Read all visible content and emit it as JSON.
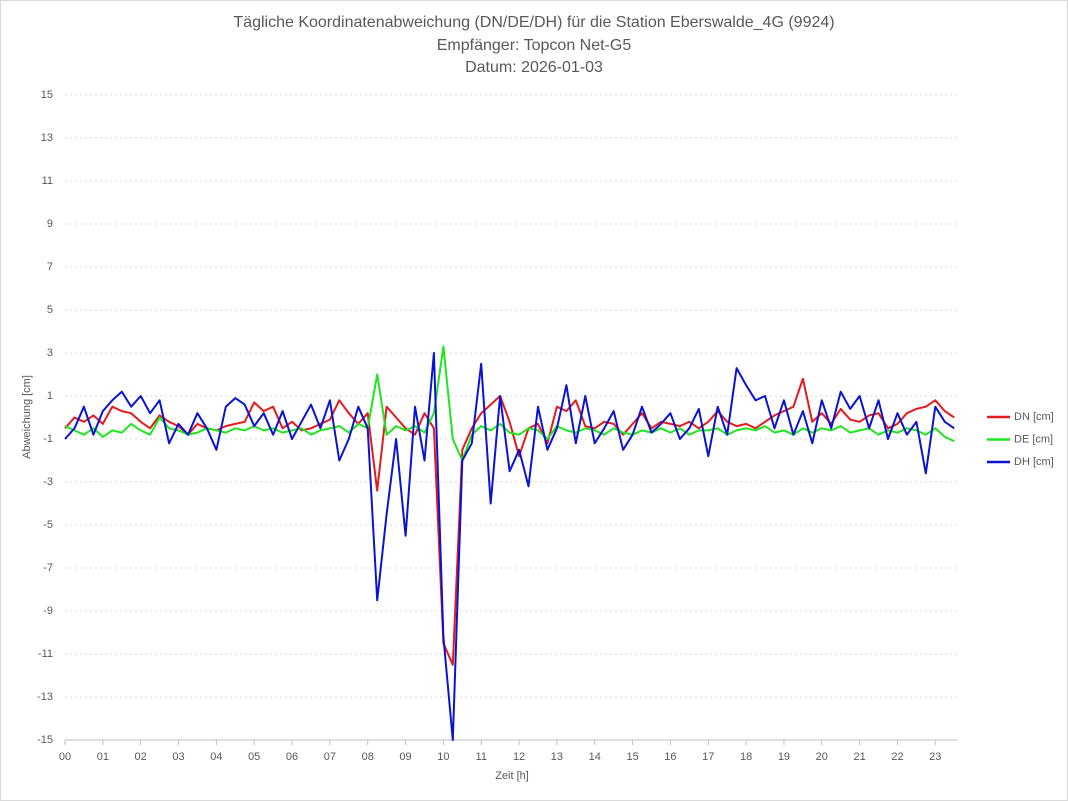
{
  "chart_data": {
    "type": "line",
    "title_lines": [
      "Tägliche Koordinatenabweichung (DN/DE/DH) für die Station Eberswalde_4G (9924)",
      "Empfänger: Topcon Net-G5",
      "Datum: 2026-01-03"
    ],
    "xlabel": "Zeit [h]",
    "ylabel": "Abweichung [cm]",
    "x": [
      0,
      0.25,
      0.5,
      0.75,
      1,
      1.25,
      1.5,
      1.75,
      2,
      2.25,
      2.5,
      2.75,
      3,
      3.25,
      3.5,
      3.75,
      4,
      4.25,
      4.5,
      4.75,
      5,
      5.25,
      5.5,
      5.75,
      6,
      6.25,
      6.5,
      6.75,
      7,
      7.25,
      7.5,
      7.75,
      8,
      8.25,
      8.5,
      8.75,
      9,
      9.25,
      9.5,
      9.75,
      10,
      10.25,
      10.5,
      10.75,
      11,
      11.25,
      11.5,
      11.75,
      12,
      12.25,
      12.5,
      12.75,
      13,
      13.25,
      13.5,
      13.75,
      14,
      14.25,
      14.5,
      14.75,
      15,
      15.25,
      15.5,
      15.75,
      16,
      16.25,
      16.5,
      16.75,
      17,
      17.25,
      17.5,
      17.75,
      18,
      18.25,
      18.5,
      18.75,
      19,
      19.25,
      19.5,
      19.75,
      20,
      20.25,
      20.5,
      20.75,
      21,
      21.25,
      21.5,
      21.75,
      22,
      22.25,
      22.5,
      22.75,
      23,
      23.25,
      23.5
    ],
    "series": [
      {
        "name": "DN [cm]",
        "color": "#e41a1c",
        "values": [
          -0.5,
          0,
          -0.2,
          0.1,
          -0.3,
          0.5,
          0.3,
          0.2,
          -0.2,
          -0.5,
          0.1,
          -0.2,
          -0.4,
          -0.8,
          -0.3,
          -0.5,
          -0.6,
          -0.4,
          -0.3,
          -0.2,
          0.7,
          0.3,
          0.5,
          -0.5,
          -0.2,
          -0.6,
          -0.5,
          -0.3,
          -0.1,
          0.8,
          0.2,
          -0.3,
          0.2,
          -3.4,
          0.5,
          0,
          -0.5,
          -0.8,
          0.2,
          -0.5,
          -10.5,
          -11.5,
          -1.5,
          -0.5,
          0.2,
          0.6,
          1.0,
          -0.2,
          -1.8,
          -0.5,
          -0.3,
          -1.2,
          0.5,
          0.3,
          0.8,
          -0.4,
          -0.5,
          -0.2,
          -0.3,
          -0.8,
          -0.3,
          0.2,
          -0.5,
          -0.2,
          -0.3,
          -0.4,
          -0.2,
          -0.5,
          -0.2,
          0.3,
          -0.2,
          -0.4,
          -0.3,
          -0.5,
          -0.2,
          0.1,
          0.3,
          0.5,
          1.8,
          -0.2,
          0.2,
          -0.3,
          0.4,
          -0.1,
          -0.2,
          0.1,
          0.2,
          -0.5,
          -0.3,
          0.2,
          0.4,
          0.5,
          0.8,
          0.3,
          0
        ]
      },
      {
        "name": "DE [cm]",
        "color": "#1ee61e",
        "values": [
          -0.4,
          -0.6,
          -0.8,
          -0.5,
          -0.9,
          -0.6,
          -0.7,
          -0.3,
          -0.6,
          -0.8,
          0,
          -0.5,
          -0.6,
          -0.8,
          -0.7,
          -0.5,
          -0.6,
          -0.7,
          -0.5,
          -0.6,
          -0.4,
          -0.6,
          -0.5,
          -0.7,
          -0.6,
          -0.5,
          -0.8,
          -0.6,
          -0.5,
          -0.4,
          -0.7,
          -0.3,
          -0.5,
          2.0,
          -0.8,
          -0.4,
          -0.6,
          -0.4,
          -0.7,
          0.2,
          3.3,
          -1.0,
          -2.0,
          -0.8,
          -0.4,
          -0.6,
          -0.3,
          -0.7,
          -0.8,
          -0.5,
          -0.6,
          -1.0,
          -0.4,
          -0.6,
          -0.7,
          -0.5,
          -0.6,
          -0.8,
          -0.5,
          -0.7,
          -0.8,
          -0.6,
          -0.7,
          -0.5,
          -0.7,
          -0.5,
          -0.8,
          -0.6,
          -0.6,
          -0.5,
          -0.8,
          -0.6,
          -0.5,
          -0.6,
          -0.4,
          -0.7,
          -0.6,
          -0.8,
          -0.5,
          -0.7,
          -0.5,
          -0.6,
          -0.4,
          -0.7,
          -0.6,
          -0.5,
          -0.8,
          -0.6,
          -0.7,
          -0.5,
          -0.6,
          -0.8,
          -0.5,
          -0.9,
          -1.1
        ]
      },
      {
        "name": "DH [cm]",
        "color": "#0a14d2",
        "values": [
          -1,
          -0.5,
          0.5,
          -0.8,
          0.3,
          0.8,
          1.2,
          0.5,
          1.0,
          0.2,
          0.8,
          -1.2,
          -0.3,
          -0.8,
          0.2,
          -0.5,
          -1.5,
          0.5,
          0.9,
          0.6,
          -0.4,
          0.2,
          -0.8,
          0.3,
          -1.0,
          -0.2,
          0.6,
          -0.5,
          0.8,
          -2.0,
          -1.0,
          0.5,
          -0.5,
          -8.5,
          -4.5,
          -1.0,
          -5.5,
          0.5,
          -2.0,
          3.0,
          -10.2,
          -15,
          -2.0,
          -1.2,
          2.5,
          -4.0,
          1.0,
          -2.5,
          -1.5,
          -3.2,
          0.5,
          -1.5,
          -0.5,
          1.5,
          -1.2,
          1.0,
          -1.2,
          -0.5,
          0.3,
          -1.5,
          -0.8,
          0.5,
          -0.7,
          -0.3,
          0.2,
          -1.0,
          -0.5,
          0.4,
          -1.8,
          0.5,
          -0.8,
          2.3,
          1.5,
          0.8,
          1.0,
          -0.5,
          0.8,
          -0.8,
          0.3,
          -1.2,
          0.8,
          -0.5,
          1.2,
          0.4,
          1.0,
          -0.5,
          0.8,
          -1.0,
          0.2,
          -0.8,
          -0.2,
          -2.6,
          0.5,
          -0.2,
          -0.5
        ]
      }
    ],
    "xlim": [
      0,
      23.6
    ],
    "xticks": [
      {
        "value": 0,
        "label": "00"
      },
      {
        "value": 1,
        "label": "01"
      },
      {
        "value": 2,
        "label": "02"
      },
      {
        "value": 3,
        "label": "03"
      },
      {
        "value": 4,
        "label": "04"
      },
      {
        "value": 5,
        "label": "05"
      },
      {
        "value": 6,
        "label": "06"
      },
      {
        "value": 7,
        "label": "07"
      },
      {
        "value": 8,
        "label": "08"
      },
      {
        "value": 9,
        "label": "09"
      },
      10,
      11,
      12,
      13,
      14,
      15,
      16,
      17,
      18,
      19,
      20,
      21,
      22,
      23
    ],
    "ylim": [
      -15,
      15
    ],
    "yticks": [
      15,
      13,
      11,
      9,
      7,
      5,
      3,
      1,
      -1,
      -3,
      -5,
      -7,
      -9,
      -11,
      -13,
      -15
    ],
    "grid": true,
    "legend": "right"
  }
}
